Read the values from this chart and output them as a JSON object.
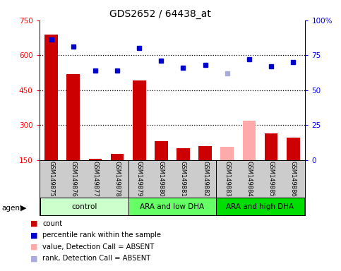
{
  "title": "GDS2652 / 64438_at",
  "samples": [
    "GSM149875",
    "GSM149876",
    "GSM149877",
    "GSM149878",
    "GSM149879",
    "GSM149880",
    "GSM149881",
    "GSM149882",
    "GSM149883",
    "GSM149884",
    "GSM149885",
    "GSM149886"
  ],
  "count_values": [
    690,
    520,
    155,
    175,
    490,
    230,
    200,
    210,
    205,
    320,
    265,
    245
  ],
  "count_absent": [
    false,
    false,
    false,
    false,
    false,
    false,
    false,
    false,
    true,
    true,
    false,
    false
  ],
  "rank_values": [
    86,
    81,
    64,
    64,
    80,
    71,
    66,
    68,
    62,
    72,
    67,
    70
  ],
  "rank_absent": [
    false,
    false,
    false,
    false,
    false,
    false,
    false,
    false,
    true,
    false,
    false,
    false
  ],
  "ylim_left": [
    150,
    750
  ],
  "ylim_right": [
    0,
    100
  ],
  "yticks_left": [
    150,
    300,
    450,
    600,
    750
  ],
  "yticks_right": [
    0,
    25,
    50,
    75,
    100
  ],
  "yticklabels_left": [
    "150",
    "300",
    "450",
    "600",
    "750"
  ],
  "yticklabels_right": [
    "0",
    "25",
    "50",
    "75",
    "100%"
  ],
  "groups": [
    {
      "label": "control",
      "start": 0,
      "end": 3,
      "color": "#ccffcc"
    },
    {
      "label": "ARA and low DHA",
      "start": 4,
      "end": 7,
      "color": "#66ff66"
    },
    {
      "label": "ARA and high DHA",
      "start": 8,
      "end": 11,
      "color": "#00dd00"
    }
  ],
  "bar_color_present": "#cc0000",
  "bar_color_absent": "#ffaaaa",
  "dot_color_present": "#0000cc",
  "dot_color_absent": "#aaaadd",
  "legend_items": [
    {
      "label": "count",
      "color": "#cc0000"
    },
    {
      "label": "percentile rank within the sample",
      "color": "#0000cc"
    },
    {
      "label": "value, Detection Call = ABSENT",
      "color": "#ffaaaa"
    },
    {
      "label": "rank, Detection Call = ABSENT",
      "color": "#aaaadd"
    }
  ],
  "agent_label": "agent",
  "grid_dotted_at": [
    300,
    450,
    600
  ],
  "n_samples": 12
}
